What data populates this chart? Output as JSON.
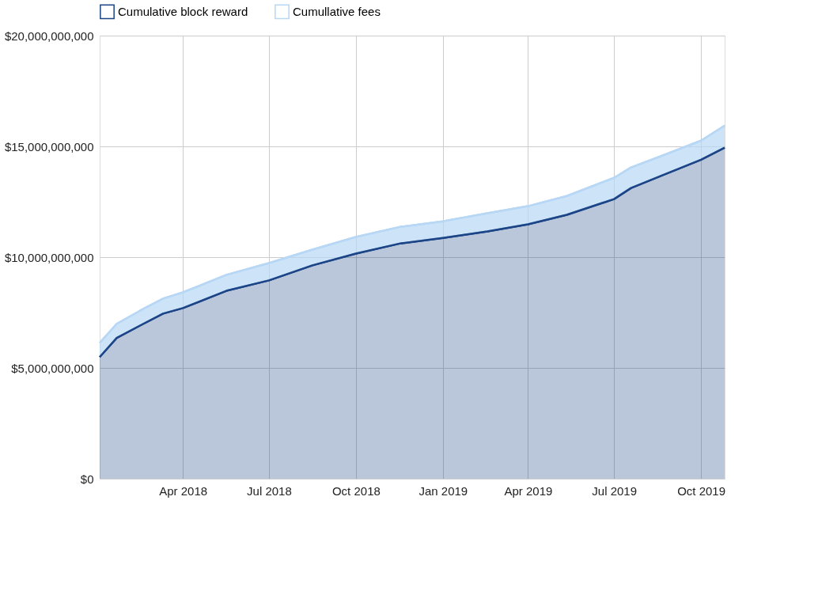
{
  "chart_data": {
    "type": "area",
    "stacked": true,
    "legend": "top",
    "grid": true,
    "line_style": "solid",
    "x": [
      "2018-01-03",
      "2018-01-21",
      "2018-02-15",
      "2018-03-11",
      "2018-04-01",
      "2018-05-17",
      "2018-07-01",
      "2018-08-16",
      "2018-10-01",
      "2018-11-17",
      "2019-01-01",
      "2019-02-17",
      "2019-04-01",
      "2019-05-12",
      "2019-07-01",
      "2019-07-19",
      "2019-08-21",
      "2019-10-01",
      "2019-10-26"
    ],
    "series": [
      {
        "name": "Cumulative block reward",
        "color": "#1c4587",
        "values": [
          5490000000,
          6350000000,
          6920000000,
          7450000000,
          7700000000,
          8480000000,
          8950000000,
          9630000000,
          10160000000,
          10620000000,
          10870000000,
          11160000000,
          11480000000,
          11910000000,
          12620000000,
          13120000000,
          13690000000,
          14400000000,
          14940000000
        ]
      },
      {
        "name": "Cumullative fees",
        "color": "#b7d7f5",
        "values": [
          640000000,
          640000000,
          670000000,
          680000000,
          710000000,
          720000000,
          780000000,
          710000000,
          750000000,
          750000000,
          750000000,
          820000000,
          820000000,
          850000000,
          960000000,
          930000000,
          890000000,
          860000000,
          1000000000
        ]
      }
    ],
    "xlim": [
      "2018-01-03",
      "2019-10-26"
    ],
    "xticks": [
      {
        "value": "2018-04-01",
        "label": "Apr 2018"
      },
      {
        "value": "2018-07-01",
        "label": "Jul 2018"
      },
      {
        "value": "2018-10-01",
        "label": "Oct 2018"
      },
      {
        "value": "2019-01-01",
        "label": "Jan 2019"
      },
      {
        "value": "2019-04-01",
        "label": "Apr 2019"
      },
      {
        "value": "2019-07-01",
        "label": "Jul 2019"
      },
      {
        "value": "2019-10-01",
        "label": "Oct 2019"
      }
    ],
    "ylim": [
      0,
      20000000000
    ],
    "yticks": [
      {
        "value": 0,
        "label": "$0"
      },
      {
        "value": 5000000000,
        "label": "$5,000,000,000"
      },
      {
        "value": 10000000000,
        "label": "$10,000,000,000"
      },
      {
        "value": 15000000000,
        "label": "$15,000,000,000"
      },
      {
        "value": 20000000000,
        "label": "$20,000,000,000"
      }
    ]
  }
}
